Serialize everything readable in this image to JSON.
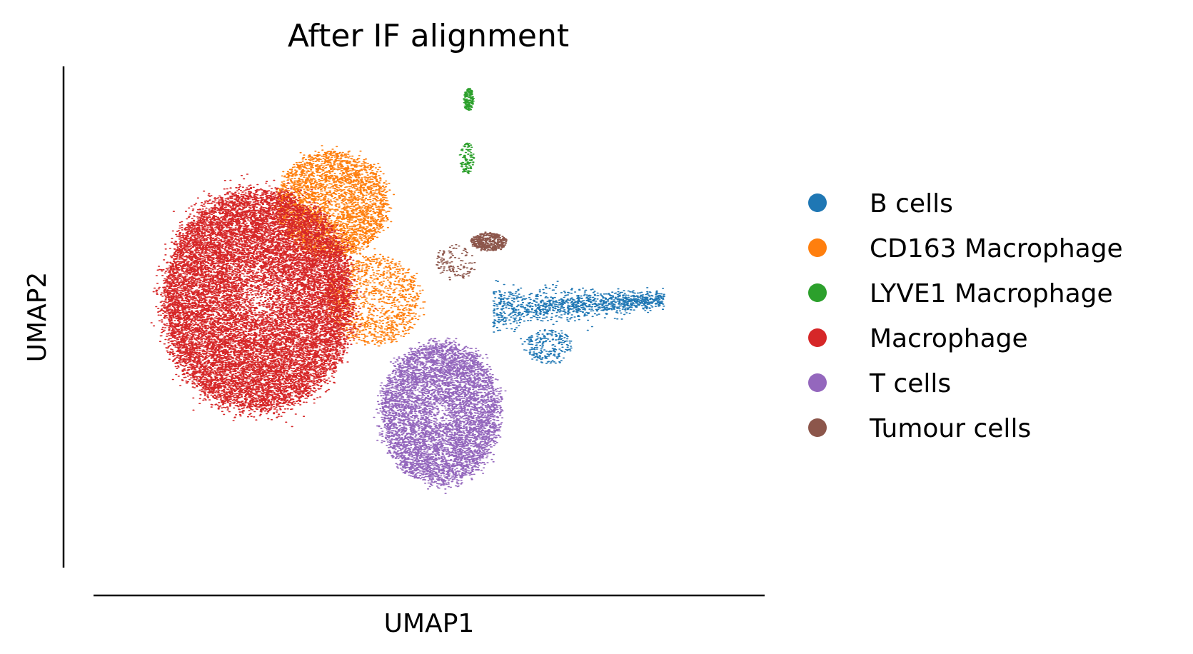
{
  "chart_data": {
    "type": "scatter",
    "title": "After IF alignment",
    "xlabel": "UMAP1",
    "ylabel": "UMAP2",
    "xlim": [
      -8,
      10
    ],
    "ylim": [
      -6,
      6
    ],
    "ticks_shown": false,
    "grid": false,
    "legend_position": "right",
    "series": [
      {
        "name": "B cells",
        "color": "#1f77b4",
        "clusters": [
          {
            "center": [
              5.0,
              0.3
            ],
            "spread": [
              2.3,
              0.35
            ],
            "n": 1200,
            "shape": "tail"
          },
          {
            "center": [
              4.2,
              -0.7
            ],
            "spread": [
              0.6,
              0.4
            ],
            "n": 220
          }
        ]
      },
      {
        "name": "CD163 Macrophage",
        "color": "#ff7f0e",
        "clusters": [
          {
            "center": [
              -1.6,
              2.7
            ],
            "spread": [
              1.4,
              1.2
            ],
            "n": 3400
          },
          {
            "center": [
              -0.5,
              0.4
            ],
            "spread": [
              1.2,
              1.0
            ],
            "n": 1200
          }
        ]
      },
      {
        "name": "LYVE1 Macrophage",
        "color": "#2ca02c",
        "clusters": [
          {
            "center": [
              2.05,
              5.2
            ],
            "spread": [
              0.12,
              0.25
            ],
            "n": 170
          },
          {
            "center": [
              2.0,
              3.8
            ],
            "spread": [
              0.18,
              0.35
            ],
            "n": 110
          }
        ]
      },
      {
        "name": "Macrophage",
        "color": "#d62728",
        "clusters": [
          {
            "center": [
              -3.6,
              0.4
            ],
            "spread": [
              2.4,
              2.5
            ],
            "n": 17000
          }
        ]
      },
      {
        "name": "T cells",
        "color": "#9467bd",
        "clusters": [
          {
            "center": [
              1.3,
              -2.3
            ],
            "spread": [
              1.5,
              1.6
            ],
            "n": 6000
          }
        ]
      },
      {
        "name": "Tumour cells",
        "color": "#8c564b",
        "clusters": [
          {
            "center": [
              2.6,
              1.8
            ],
            "spread": [
              0.45,
              0.2
            ],
            "n": 450
          },
          {
            "center": [
              1.7,
              1.3
            ],
            "spread": [
              0.5,
              0.4
            ],
            "n": 120
          }
        ]
      }
    ]
  }
}
